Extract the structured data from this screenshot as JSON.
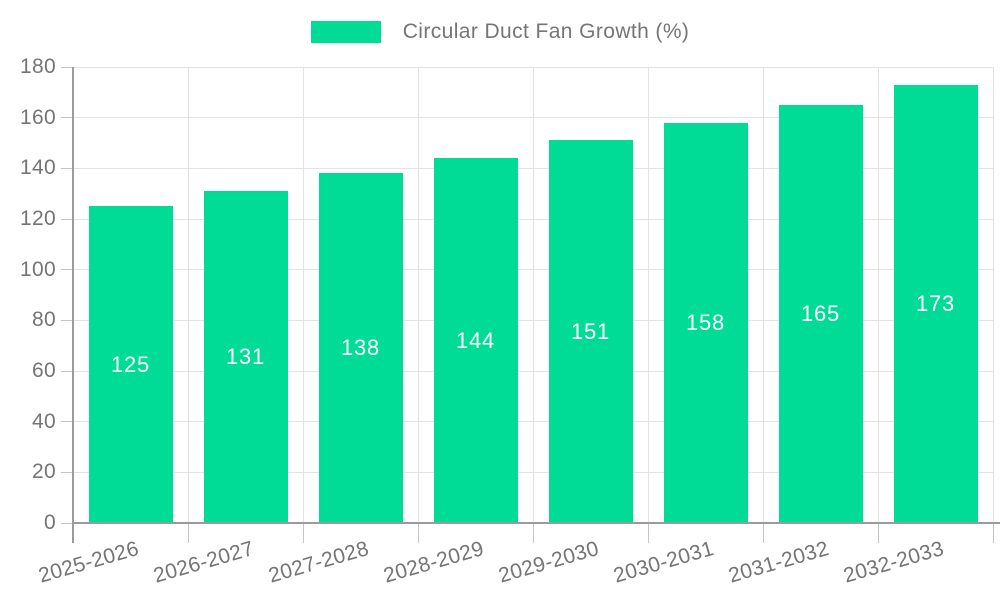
{
  "legend": {
    "label": "Circular Duct Fan Growth (%)"
  },
  "chart_data": {
    "type": "bar",
    "title": "Circular Duct Fan Growth (%)",
    "categories": [
      "2025-2026",
      "2026-2027",
      "2027-2028",
      "2028-2029",
      "2029-2030",
      "2030-2031",
      "2031-2032",
      "2032-2033"
    ],
    "values": [
      125,
      131,
      138,
      144,
      151,
      158,
      165,
      173
    ],
    "xlabel": "",
    "ylabel": "",
    "ylim": [
      0,
      180
    ],
    "ytick_step": 20,
    "yticks": [
      0,
      20,
      40,
      60,
      80,
      100,
      120,
      140,
      160,
      180
    ],
    "grid": true,
    "legend_position": "top-center",
    "value_labels": "centered-inside-bars",
    "xlabel_rotation_deg": -16,
    "style": {
      "bar_color": "#00DB96",
      "value_label_color": "#FFFFFF",
      "axis_text_color": "#757575",
      "grid_color": "#E3E3E3",
      "axis_line_color": "#9B9B9B",
      "tick_color": "#C6C6C6",
      "background_color": "#FFFFFF"
    }
  }
}
